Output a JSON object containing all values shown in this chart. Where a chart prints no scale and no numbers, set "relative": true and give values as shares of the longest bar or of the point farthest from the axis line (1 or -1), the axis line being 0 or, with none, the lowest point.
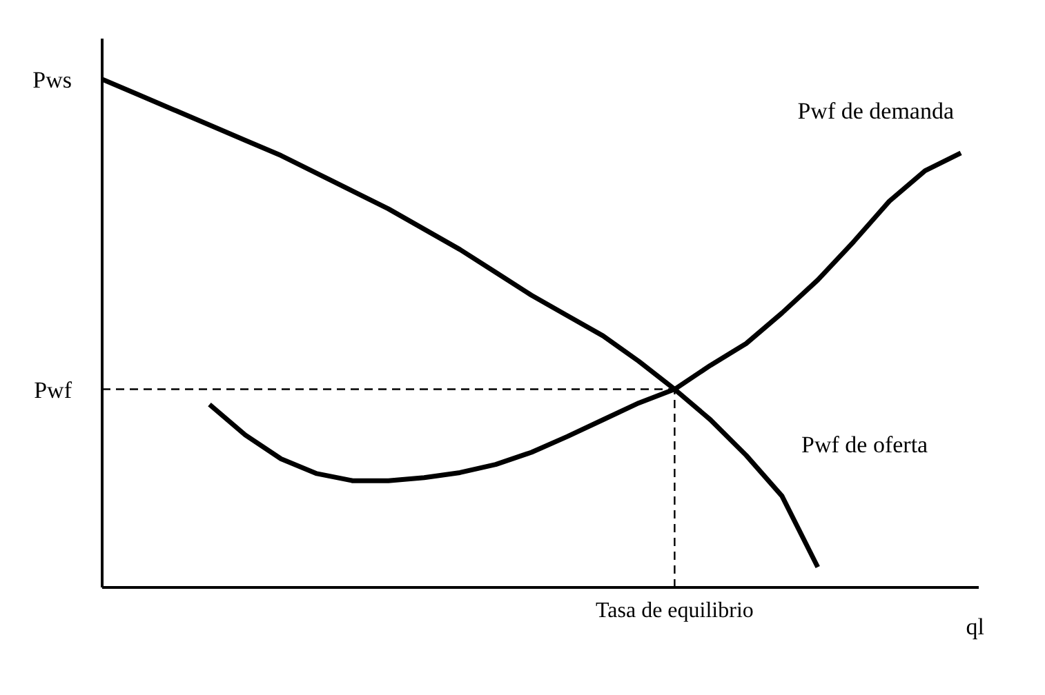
{
  "chart_data": {
    "type": "line",
    "relative": true,
    "xlabel": "ql",
    "categories": [
      null,
      null,
      null,
      null,
      null,
      null,
      null,
      null,
      null,
      null,
      null,
      null,
      null,
      null,
      null,
      null,
      null,
      null,
      null,
      null,
      null,
      null,
      null,
      null,
      null
    ],
    "series": [
      {
        "name": "Pwf de oferta",
        "color": "#000000",
        "values": [
          1.0,
          0.97,
          0.94,
          0.91,
          0.88,
          0.85,
          0.815,
          0.78,
          0.745,
          0.705,
          0.665,
          0.62,
          0.575,
          0.535,
          0.495,
          0.445,
          0.39,
          0.33,
          0.26,
          0.18,
          0.04,
          null,
          null,
          null,
          null
        ]
      },
      {
        "name": "Pwf de demanda",
        "color": "#000000",
        "values": [
          null,
          null,
          null,
          0.36,
          0.3,
          0.253,
          0.224,
          0.21,
          0.21,
          0.216,
          0.226,
          0.242,
          0.266,
          0.297,
          0.33,
          0.363,
          0.39,
          0.437,
          0.48,
          0.54,
          0.605,
          0.68,
          0.76,
          0.82,
          0.855
        ]
      }
    ],
    "ref_lines": [
      {
        "axis": "y",
        "value": 0.39,
        "label": "Pwf",
        "line_style": "dashed",
        "color": "#000000"
      }
    ],
    "annotations": [
      "Pws",
      "Tasa de equilibrio"
    ],
    "marker": "none",
    "line_style": "solid",
    "grid": false,
    "legend": false
  }
}
